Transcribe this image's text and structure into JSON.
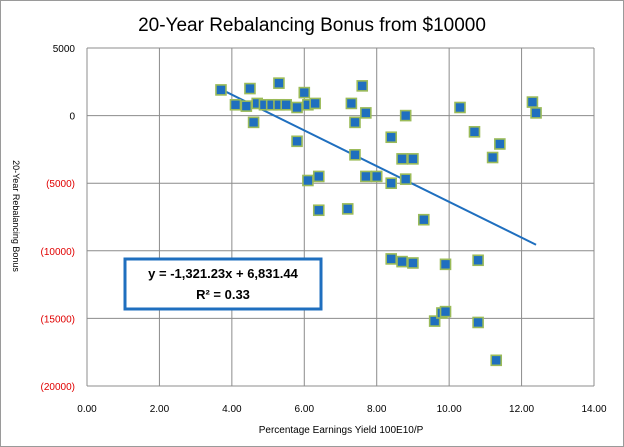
{
  "chart_data": {
    "type": "scatter",
    "title": "20-Year Rebalancing Bonus from $10000",
    "xlabel": "Percentage Earnings Yield 100E10/P",
    "ylabel": "20-Year Rebalancing Bonus",
    "xlim": [
      0,
      14
    ],
    "ylim": [
      -20000,
      5000
    ],
    "x_ticks": [
      "0.00",
      "2.00",
      "4.00",
      "6.00",
      "8.00",
      "10.00",
      "12.00",
      "14.00"
    ],
    "y_ticks": [
      {
        "value": 5000,
        "label": "5000"
      },
      {
        "value": 0,
        "label": "0"
      },
      {
        "value": -5000,
        "label": "(5000)"
      },
      {
        "value": -10000,
        "label": "(10000)"
      },
      {
        "value": -15000,
        "label": "(15000)"
      },
      {
        "value": -20000,
        "label": "(20000)"
      }
    ],
    "grid": true,
    "marker_color": "#1f6fbf",
    "marker_edge_color": "#9bbb59",
    "trendline_color": "#1f6fbf",
    "series": [
      {
        "points": [
          [
            3.7,
            1900
          ],
          [
            4.1,
            800
          ],
          [
            4.4,
            700
          ],
          [
            4.5,
            2000
          ],
          [
            4.6,
            -500
          ],
          [
            4.7,
            900
          ],
          [
            4.9,
            800
          ],
          [
            5.1,
            800
          ],
          [
            5.3,
            2400
          ],
          [
            5.3,
            800
          ],
          [
            5.5,
            800
          ],
          [
            5.8,
            600
          ],
          [
            5.8,
            -1900
          ],
          [
            6.0,
            1700
          ],
          [
            6.1,
            800
          ],
          [
            6.1,
            -4800
          ],
          [
            6.3,
            900
          ],
          [
            6.4,
            -4500
          ],
          [
            6.4,
            -7000
          ],
          [
            7.2,
            -6900
          ],
          [
            7.3,
            900
          ],
          [
            7.4,
            -500
          ],
          [
            7.4,
            -2900
          ],
          [
            7.6,
            2200
          ],
          [
            7.7,
            200
          ],
          [
            7.7,
            -4500
          ],
          [
            8.0,
            -4500
          ],
          [
            8.4,
            -1600
          ],
          [
            8.4,
            -5000
          ],
          [
            8.4,
            -10600
          ],
          [
            8.7,
            -3200
          ],
          [
            8.7,
            -10800
          ],
          [
            8.8,
            -4700
          ],
          [
            8.8,
            0
          ],
          [
            9.0,
            -3200
          ],
          [
            9.0,
            -10900
          ],
          [
            9.3,
            -7700
          ],
          [
            9.6,
            -15200
          ],
          [
            9.8,
            -14600
          ],
          [
            9.9,
            -11000
          ],
          [
            9.9,
            -14500
          ],
          [
            10.3,
            600
          ],
          [
            10.7,
            -1200
          ],
          [
            10.8,
            -15300
          ],
          [
            10.8,
            -10700
          ],
          [
            11.2,
            -3100
          ],
          [
            11.3,
            -18100
          ],
          [
            11.4,
            -2100
          ],
          [
            12.3,
            1000
          ],
          [
            12.4,
            200
          ]
        ]
      }
    ],
    "trendline": {
      "slope": -1321.23,
      "intercept": 6831.44,
      "x_range": [
        3.7,
        12.4
      ],
      "equation_label": "y = -1,321.23x + 6,831.44",
      "r2_label": "R² = 0.33"
    }
  }
}
